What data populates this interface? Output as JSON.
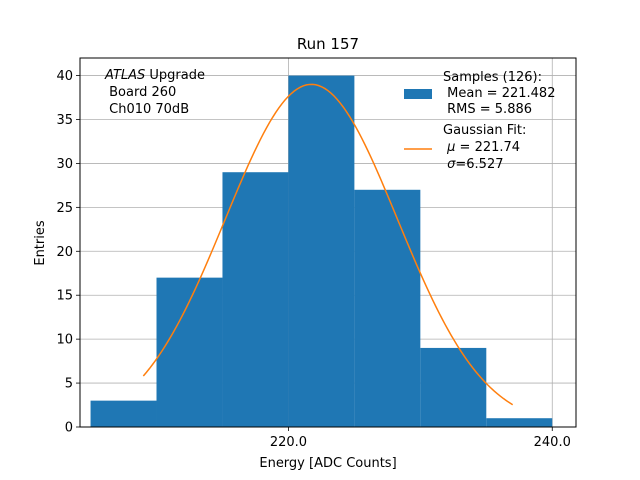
{
  "chart_data": {
    "type": "bar",
    "title": "Run 157",
    "xlabel": "Energy [ADC Counts]",
    "ylabel": "Entries",
    "xlim": [
      204.2,
      241.8
    ],
    "ylim": [
      0,
      42
    ],
    "xticks": [
      220.0,
      240.0
    ],
    "xtick_labels": [
      "220.0",
      "240.0"
    ],
    "yticks": [
      0,
      5,
      10,
      15,
      20,
      25,
      30,
      35,
      40
    ],
    "ytick_labels": [
      "0",
      "5",
      "10",
      "15",
      "20",
      "25",
      "30",
      "35",
      "40"
    ],
    "grid": true,
    "bins": [
      {
        "lo": 205,
        "hi": 210,
        "count": 3
      },
      {
        "lo": 210,
        "hi": 215,
        "count": 17
      },
      {
        "lo": 215,
        "hi": 220,
        "count": 29
      },
      {
        "lo": 220,
        "hi": 225,
        "count": 40
      },
      {
        "lo": 225,
        "hi": 230,
        "count": 27
      },
      {
        "lo": 230,
        "hi": 235,
        "count": 9
      },
      {
        "lo": 235,
        "hi": 240,
        "count": 1
      }
    ],
    "fit": {
      "mu": 221.74,
      "sigma": 6.527,
      "amplitude": 39.0,
      "x_range": [
        209.0,
        237.0
      ]
    },
    "bar_color": "#1f77b4",
    "fit_color": "#ff7f0e",
    "annotation": {
      "italic": "ATLAS",
      "line1_rest": " Upgrade",
      "line2": " Board 260",
      "line3": " Ch010 70dB"
    },
    "legend": {
      "position": "top-right",
      "samples_title": "Samples (126):",
      "samples_mean": " Mean = 221.482",
      "samples_rms": " RMS = 5.886",
      "fit_title": "Gaussian Fit:",
      "fit_mu_symbol": "μ",
      "fit_mu_rest": " = 221.74",
      "fit_sigma_symbol": "σ",
      "fit_sigma_rest": "=6.527"
    }
  }
}
